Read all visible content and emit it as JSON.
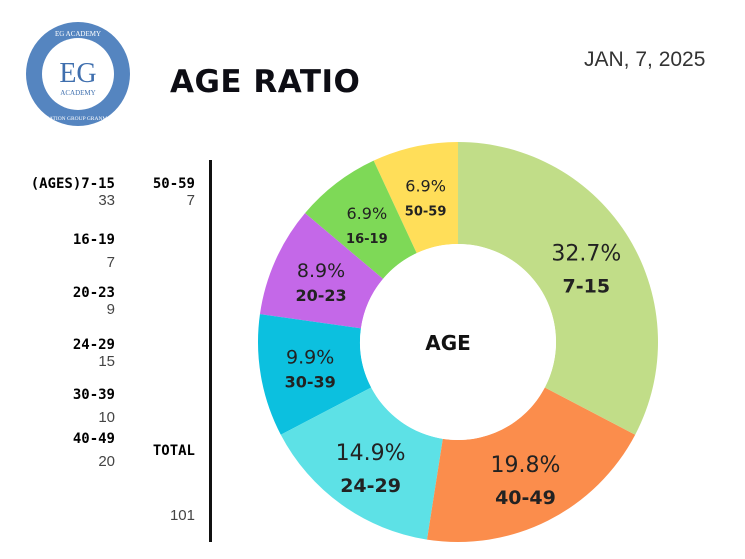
{
  "header": {
    "title": "AGE RATIO",
    "date": "JAN, 7, 2025",
    "logo_text": [
      "EG ACADEMY",
      "EG",
      "ACADEMY",
      "EDUCATION GROUP GRANMA INC"
    ]
  },
  "legend": {
    "items": [
      {
        "label": "(AGES)7-15",
        "value": "33"
      },
      {
        "label": "16-19",
        "value": "7"
      },
      {
        "label": "20-23",
        "value": "9"
      },
      {
        "label": "24-29",
        "value": "15"
      },
      {
        "label": "30-39",
        "value": "10"
      },
      {
        "label": "40-49",
        "value": "20"
      }
    ],
    "extra": {
      "label": "50-59",
      "value": "7"
    },
    "total_label": "TOTAL",
    "total_value": "101"
  },
  "chart_data": {
    "type": "pie",
    "donut": true,
    "center_label": "AGE",
    "categories": [
      "7-15",
      "40-49",
      "24-29",
      "30-39",
      "20-23",
      "16-19",
      "50-59"
    ],
    "values": [
      33,
      20,
      15,
      10,
      9,
      7,
      7
    ],
    "percent_labels": [
      "32.7%",
      "19.8%",
      "14.9%",
      "9.9%",
      "8.9%",
      "6.9%",
      "6.9%"
    ],
    "colors": [
      "#c1dd88",
      "#fb8d4c",
      "#5de1e6",
      "#0cc0df",
      "#c468e8",
      "#7ed957",
      "#ffde59"
    ]
  }
}
